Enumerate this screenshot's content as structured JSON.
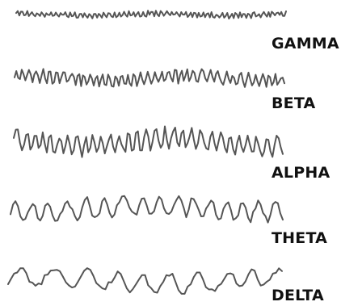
{
  "bands": [
    {
      "id": "gamma",
      "label": "GAMMA"
    },
    {
      "id": "beta",
      "label": "BETA"
    },
    {
      "id": "alpha",
      "label": "ALPHA"
    },
    {
      "id": "theta",
      "label": "THETA"
    },
    {
      "id": "delta",
      "label": "DELTA"
    }
  ],
  "colors": {
    "wave": "#555555",
    "label": "#111111",
    "background": "#ffffff"
  }
}
